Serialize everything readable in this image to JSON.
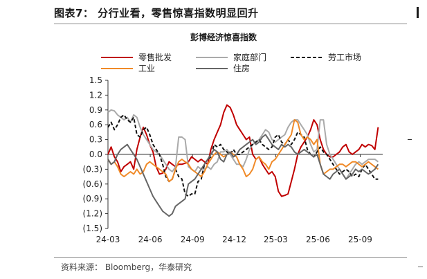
{
  "figure": {
    "title": "图表7：  分行业看，零售惊喜指数明显回升",
    "source": "资料来源：  Bloomberg，华泰研究"
  },
  "chart_data": {
    "type": "line",
    "title": "彭博经济惊喜指数",
    "xlabel": "",
    "ylabel": "",
    "ylim": [
      -1.5,
      1.5
    ],
    "yticks": [
      1.5,
      1.2,
      0.9,
      0.6,
      0.3,
      0.0,
      -0.3,
      -0.6,
      -0.9,
      -1.2,
      -1.5
    ],
    "ytick_labels": [
      "1.5",
      "1.2",
      "0.9",
      "0.6",
      "0.3",
      "0.0",
      "(0.3)",
      "(0.6)",
      "(0.9)",
      "(1.2)",
      "(1.5)"
    ],
    "x_range": [
      "2024-03-01",
      "2025-10-20"
    ],
    "xticks": [
      "2024-03-01",
      "2024-06-01",
      "2024-09-01",
      "2024-12-01",
      "2025-03-01",
      "2025-06-01",
      "2025-09-01"
    ],
    "xtick_labels": [
      "24-03",
      "24-06",
      "24-09",
      "24-12",
      "25-03",
      "25-06",
      "25-09"
    ],
    "grid": false,
    "legend_position": "top",
    "series": [
      {
        "name": "零售批发",
        "color": "#C00000",
        "dash": "solid",
        "x": [
          "2024-03-01",
          "2024-03-08",
          "2024-03-15",
          "2024-03-22",
          "2024-03-29",
          "2024-04-05",
          "2024-04-12",
          "2024-04-19",
          "2024-04-26",
          "2024-05-03",
          "2024-05-10",
          "2024-05-17",
          "2024-05-24",
          "2024-05-31",
          "2024-06-07",
          "2024-06-14",
          "2024-06-21",
          "2024-06-28",
          "2024-07-05",
          "2024-07-12",
          "2024-07-19",
          "2024-07-26",
          "2024-08-02",
          "2024-08-09",
          "2024-08-16",
          "2024-08-23",
          "2024-08-30",
          "2024-09-06",
          "2024-09-13",
          "2024-09-20",
          "2024-09-27",
          "2024-10-04",
          "2024-10-11",
          "2024-10-18",
          "2024-10-25",
          "2024-11-01",
          "2024-11-08",
          "2024-11-15",
          "2024-11-22",
          "2024-11-29",
          "2024-12-06",
          "2024-12-13",
          "2024-12-20",
          "2024-12-27",
          "2025-01-03",
          "2025-01-10",
          "2025-01-17",
          "2025-01-24",
          "2025-01-31",
          "2025-02-07",
          "2025-02-14",
          "2025-02-21",
          "2025-02-28",
          "2025-03-07",
          "2025-03-14",
          "2025-03-21",
          "2025-03-28",
          "2025-04-04",
          "2025-04-11",
          "2025-04-18",
          "2025-04-25",
          "2025-05-02",
          "2025-05-09",
          "2025-05-16",
          "2025-05-23",
          "2025-05-30",
          "2025-06-06",
          "2025-06-13",
          "2025-06-20",
          "2025-06-27",
          "2025-07-04",
          "2025-07-11",
          "2025-07-18",
          "2025-07-25",
          "2025-08-01",
          "2025-08-08",
          "2025-08-15",
          "2025-08-22",
          "2025-08-29",
          "2025-09-05",
          "2025-09-12",
          "2025-09-19",
          "2025-09-26",
          "2025-10-03",
          "2025-10-10"
        ],
        "y": [
          0.0,
          0.15,
          -0.05,
          -0.15,
          -0.35,
          -0.25,
          -0.2,
          -0.15,
          -0.3,
          0.1,
          0.35,
          0.55,
          0.4,
          0.2,
          0.05,
          -0.25,
          -0.4,
          -0.38,
          -0.3,
          -0.15,
          -0.2,
          -0.25,
          -0.2,
          -0.2,
          -0.18,
          -0.15,
          -0.05,
          -0.1,
          -0.15,
          -0.1,
          -0.15,
          -0.2,
          0.1,
          0.3,
          0.45,
          0.6,
          0.85,
          1.0,
          0.95,
          0.8,
          0.6,
          0.5,
          0.4,
          0.3,
          0.35,
          0.0,
          -0.1,
          -0.05,
          -0.2,
          -0.3,
          -0.4,
          -0.35,
          -0.45,
          -0.75,
          -0.85,
          -0.83,
          -0.8,
          -0.55,
          -0.3,
          0.0,
          0.15,
          0.25,
          0.35,
          0.5,
          0.7,
          0.6,
          0.3,
          0.1,
          0.0,
          -0.05,
          -0.05,
          0.0,
          0.05,
          0.15,
          0.2,
          0.05,
          0.0,
          0.05,
          0.1,
          0.2,
          0.15,
          0.2,
          0.18,
          0.1,
          0.55
        ]
      },
      {
        "name": "家庭部门",
        "color": "#AAAAAA",
        "dash": "solid",
        "x": [
          "2024-03-01",
          "2024-03-08",
          "2024-03-15",
          "2024-03-22",
          "2024-03-29",
          "2024-04-05",
          "2024-04-12",
          "2024-04-19",
          "2024-04-26",
          "2024-05-03",
          "2024-05-10",
          "2024-05-17",
          "2024-05-24",
          "2024-05-31",
          "2024-06-07",
          "2024-06-14",
          "2024-06-21",
          "2024-06-28",
          "2024-07-05",
          "2024-07-12",
          "2024-07-19",
          "2024-07-26",
          "2024-08-02",
          "2024-08-09",
          "2024-08-16",
          "2024-08-23",
          "2024-08-30",
          "2024-09-06",
          "2024-09-13",
          "2024-09-20",
          "2024-09-27",
          "2024-10-04",
          "2024-10-11",
          "2024-10-18",
          "2024-10-25",
          "2024-11-01",
          "2024-11-08",
          "2024-11-15",
          "2024-11-22",
          "2024-11-29",
          "2024-12-06",
          "2024-12-13",
          "2024-12-20",
          "2024-12-27",
          "2025-01-03",
          "2025-01-10",
          "2025-01-17",
          "2025-01-24",
          "2025-01-31",
          "2025-02-07",
          "2025-02-14",
          "2025-02-21",
          "2025-02-28",
          "2025-03-07",
          "2025-03-14",
          "2025-03-21",
          "2025-03-28",
          "2025-04-04",
          "2025-04-11",
          "2025-04-18",
          "2025-04-25",
          "2025-05-02",
          "2025-05-09",
          "2025-05-16",
          "2025-05-23",
          "2025-05-30",
          "2025-06-06",
          "2025-06-13",
          "2025-06-20",
          "2025-06-27",
          "2025-07-04",
          "2025-07-11",
          "2025-07-18",
          "2025-07-25",
          "2025-08-01",
          "2025-08-08",
          "2025-08-15",
          "2025-08-22",
          "2025-08-29",
          "2025-09-05",
          "2025-09-12",
          "2025-09-19",
          "2025-09-26",
          "2025-10-03",
          "2025-10-10"
        ],
        "y": [
          0.85,
          0.9,
          0.88,
          0.8,
          0.75,
          0.7,
          0.75,
          0.65,
          0.8,
          0.75,
          0.55,
          0.4,
          0.3,
          0.2,
          0.1,
          0.05,
          0.0,
          -0.1,
          -0.2,
          -0.3,
          -0.35,
          -0.25,
          0.35,
          0.35,
          0.3,
          -0.25,
          -0.3,
          -0.35,
          -0.25,
          -0.3,
          -0.3,
          -0.25,
          -0.3,
          -0.2,
          -0.15,
          0.05,
          0.05,
          0.1,
          0.0,
          -0.1,
          -0.2,
          -0.2,
          -0.25,
          -0.1,
          0.1,
          0.2,
          0.25,
          0.3,
          0.4,
          0.5,
          0.45,
          0.3,
          0.25,
          0.3,
          0.35,
          0.4,
          0.55,
          0.65,
          0.7,
          0.7,
          0.6,
          0.5,
          0.4,
          0.2,
          0.05,
          0.1,
          0.7,
          0.7,
          0.2,
          0.0,
          -0.1,
          -0.2,
          -0.3,
          -0.4,
          -0.5,
          -0.4,
          -0.3,
          -0.2,
          -0.15,
          -0.2,
          -0.15,
          -0.1,
          -0.1,
          -0.1,
          -0.15
        ]
      },
      {
        "name": "劳工市场",
        "color": "#111111",
        "dash": "dashed",
        "x": [
          "2024-03-01",
          "2024-03-08",
          "2024-03-15",
          "2024-03-22",
          "2024-03-29",
          "2024-04-05",
          "2024-04-12",
          "2024-04-19",
          "2024-04-26",
          "2024-05-03",
          "2024-05-10",
          "2024-05-17",
          "2024-05-24",
          "2024-05-31",
          "2024-06-07",
          "2024-06-14",
          "2024-06-21",
          "2024-06-28",
          "2024-07-05",
          "2024-07-12",
          "2024-07-19",
          "2024-07-26",
          "2024-08-02",
          "2024-08-09",
          "2024-08-16",
          "2024-08-23",
          "2024-08-30",
          "2024-09-06",
          "2024-09-13",
          "2024-09-20",
          "2024-09-27",
          "2024-10-04",
          "2024-10-11",
          "2024-10-18",
          "2024-10-25",
          "2024-11-01",
          "2024-11-08",
          "2024-11-15",
          "2024-11-22",
          "2024-11-29",
          "2024-12-06",
          "2024-12-13",
          "2024-12-20",
          "2024-12-27",
          "2025-01-03",
          "2025-01-10",
          "2025-01-17",
          "2025-01-24",
          "2025-01-31",
          "2025-02-07",
          "2025-02-14",
          "2025-02-21",
          "2025-02-28",
          "2025-03-07",
          "2025-03-14",
          "2025-03-21",
          "2025-03-28",
          "2025-04-04",
          "2025-04-11",
          "2025-04-18",
          "2025-04-25",
          "2025-05-02",
          "2025-05-09",
          "2025-05-16",
          "2025-05-23",
          "2025-05-30",
          "2025-06-06",
          "2025-06-13",
          "2025-06-20",
          "2025-06-27",
          "2025-07-04",
          "2025-07-11",
          "2025-07-18",
          "2025-07-25",
          "2025-08-01",
          "2025-08-08",
          "2025-08-15",
          "2025-08-22",
          "2025-08-29",
          "2025-09-05",
          "2025-09-12",
          "2025-09-19",
          "2025-09-26",
          "2025-10-03",
          "2025-10-10"
        ],
        "y": [
          0.55,
          0.65,
          0.5,
          0.6,
          0.75,
          0.8,
          0.7,
          0.65,
          0.75,
          0.4,
          0.35,
          0.5,
          0.55,
          0.4,
          0.2,
          0.1,
          0.0,
          -0.2,
          -0.45,
          -0.55,
          -0.5,
          -0.3,
          -0.45,
          -0.5,
          -0.8,
          -0.85,
          -0.8,
          -0.8,
          -0.55,
          -0.5,
          -0.2,
          -0.1,
          -0.05,
          0.2,
          0.15,
          0.2,
          0.1,
          0.05,
          0.0,
          0.1,
          0.0,
          0.0,
          0.05,
          0.1,
          0.15,
          0.2,
          0.25,
          0.3,
          0.2,
          0.15,
          0.1,
          0.15,
          0.35,
          0.4,
          0.25,
          0.2,
          0.3,
          0.2,
          0.3,
          0.45,
          0.4,
          0.35,
          0.1,
          0.0,
          -0.05,
          0.05,
          0.15,
          0.05,
          0.0,
          -0.1,
          -0.2,
          -0.3,
          -0.4,
          -0.35,
          -0.3,
          -0.35,
          -0.45,
          -0.4,
          -0.45,
          -0.3,
          -0.2,
          -0.3,
          -0.4,
          -0.5,
          -0.5
        ]
      },
      {
        "name": "工业",
        "color": "#F08A28",
        "dash": "solid",
        "x": [
          "2024-03-01",
          "2024-03-08",
          "2024-03-15",
          "2024-03-22",
          "2024-03-29",
          "2024-04-05",
          "2024-04-12",
          "2024-04-19",
          "2024-04-26",
          "2024-05-03",
          "2024-05-10",
          "2024-05-17",
          "2024-05-24",
          "2024-05-31",
          "2024-06-07",
          "2024-06-14",
          "2024-06-21",
          "2024-06-28",
          "2024-07-05",
          "2024-07-12",
          "2024-07-19",
          "2024-07-26",
          "2024-08-02",
          "2024-08-09",
          "2024-08-16",
          "2024-08-23",
          "2024-08-30",
          "2024-09-06",
          "2024-09-13",
          "2024-09-20",
          "2024-09-27",
          "2024-10-04",
          "2024-10-11",
          "2024-10-18",
          "2024-10-25",
          "2024-11-01",
          "2024-11-08",
          "2024-11-15",
          "2024-11-22",
          "2024-11-29",
          "2024-12-06",
          "2024-12-13",
          "2024-12-20",
          "2024-12-27",
          "2025-01-03",
          "2025-01-10",
          "2025-01-17",
          "2025-01-24",
          "2025-01-31",
          "2025-02-07",
          "2025-02-14",
          "2025-02-21",
          "2025-02-28",
          "2025-03-07",
          "2025-03-14",
          "2025-03-21",
          "2025-03-28",
          "2025-04-04",
          "2025-04-11",
          "2025-04-18",
          "2025-04-25",
          "2025-05-02",
          "2025-05-09",
          "2025-05-16",
          "2025-05-23",
          "2025-05-30",
          "2025-06-06",
          "2025-06-13",
          "2025-06-20",
          "2025-06-27",
          "2025-07-04",
          "2025-07-11",
          "2025-07-18",
          "2025-07-25",
          "2025-08-01",
          "2025-08-08",
          "2025-08-15",
          "2025-08-22",
          "2025-08-29",
          "2025-09-05",
          "2025-09-12",
          "2025-09-19",
          "2025-09-26",
          "2025-10-03",
          "2025-10-10"
        ],
        "y": [
          -0.1,
          -0.2,
          -0.15,
          -0.25,
          -0.4,
          -0.45,
          -0.4,
          -0.35,
          -0.4,
          -0.3,
          -0.4,
          -0.35,
          -0.2,
          -0.15,
          -0.2,
          -0.25,
          -0.3,
          -0.35,
          -0.4,
          -0.55,
          -0.5,
          -0.3,
          -0.15,
          -0.1,
          -0.15,
          -0.2,
          -0.3,
          -0.35,
          -0.4,
          -0.45,
          -0.35,
          -0.2,
          -0.1,
          0.0,
          0.05,
          0.0,
          -0.05,
          0.0,
          0.05,
          0.0,
          -0.05,
          -0.2,
          -0.3,
          -0.45,
          -0.4,
          -0.3,
          -0.1,
          -0.05,
          -0.15,
          -0.2,
          -0.3,
          -0.15,
          -0.1,
          0.0,
          0.1,
          0.2,
          0.3,
          0.4,
          0.7,
          0.65,
          0.4,
          0.3,
          0.35,
          0.3,
          0.2,
          0.3,
          -0.2,
          -0.4,
          -0.35,
          -0.3,
          -0.3,
          -0.25,
          -0.2,
          -0.2,
          -0.25,
          -0.2,
          -0.15,
          -0.15,
          -0.2,
          -0.25,
          -0.2,
          -0.15,
          -0.2,
          -0.25,
          -0.3
        ]
      },
      {
        "name": "住房",
        "color": "#666666",
        "dash": "solid",
        "x": [
          "2024-03-01",
          "2024-03-08",
          "2024-03-15",
          "2024-03-22",
          "2024-03-29",
          "2024-04-05",
          "2024-04-12",
          "2024-04-19",
          "2024-04-26",
          "2024-05-03",
          "2024-05-10",
          "2024-05-17",
          "2024-05-24",
          "2024-05-31",
          "2024-06-07",
          "2024-06-14",
          "2024-06-21",
          "2024-06-28",
          "2024-07-05",
          "2024-07-12",
          "2024-07-19",
          "2024-07-26",
          "2024-08-02",
          "2024-08-09",
          "2024-08-16",
          "2024-08-23",
          "2024-08-30",
          "2024-09-06",
          "2024-09-13",
          "2024-09-20",
          "2024-09-27",
          "2024-10-04",
          "2024-10-11",
          "2024-10-18",
          "2024-10-25",
          "2024-11-01",
          "2024-11-08",
          "2024-11-15",
          "2024-11-22",
          "2024-11-29",
          "2024-12-06",
          "2024-12-13",
          "2024-12-20",
          "2024-12-27",
          "2025-01-03",
          "2025-01-10",
          "2025-01-17",
          "2025-01-24",
          "2025-01-31",
          "2025-02-07",
          "2025-02-14",
          "2025-02-21",
          "2025-02-28",
          "2025-03-07",
          "2025-03-14",
          "2025-03-21",
          "2025-03-28",
          "2025-04-04",
          "2025-04-11",
          "2025-04-18",
          "2025-04-25",
          "2025-05-02",
          "2025-05-09",
          "2025-05-16",
          "2025-05-23",
          "2025-05-30",
          "2025-06-06",
          "2025-06-13",
          "2025-06-20",
          "2025-06-27",
          "2025-07-04",
          "2025-07-11",
          "2025-07-18",
          "2025-07-25",
          "2025-08-01",
          "2025-08-08",
          "2025-08-15",
          "2025-08-22",
          "2025-08-29",
          "2025-09-05",
          "2025-09-12",
          "2025-09-19",
          "2025-09-26",
          "2025-10-03",
          "2025-10-10"
        ],
        "y": [
          -0.1,
          -0.2,
          -0.15,
          0.0,
          0.1,
          0.15,
          0.2,
          0.1,
          0.0,
          -0.1,
          -0.25,
          -0.4,
          -0.55,
          -0.7,
          -0.85,
          -0.95,
          -1.05,
          -1.15,
          -1.2,
          -1.25,
          -1.2,
          -1.05,
          -1.0,
          -0.95,
          -0.9,
          -0.6,
          -0.55,
          -0.5,
          -0.4,
          -0.3,
          -0.2,
          -0.1,
          0.0,
          0.1,
          0.05,
          -0.1,
          -0.15,
          0.0,
          0.05,
          -0.05,
          0.0,
          0.1,
          0.15,
          0.2,
          0.25,
          0.3,
          0.2,
          0.25,
          0.35,
          0.4,
          0.3,
          0.2,
          0.15,
          0.1,
          0.2,
          0.15,
          0.2,
          0.15,
          0.05,
          0.0,
          0.05,
          0.1,
          0.05,
          0.0,
          -0.05,
          0.0,
          -0.2,
          -0.4,
          -0.45,
          -0.5,
          -0.4,
          -0.35,
          -0.3,
          -0.4,
          -0.5,
          -0.45,
          -0.4,
          -0.3,
          -0.35,
          -0.3,
          -0.35,
          -0.4,
          -0.35,
          -0.3,
          -0.2
        ]
      }
    ]
  }
}
